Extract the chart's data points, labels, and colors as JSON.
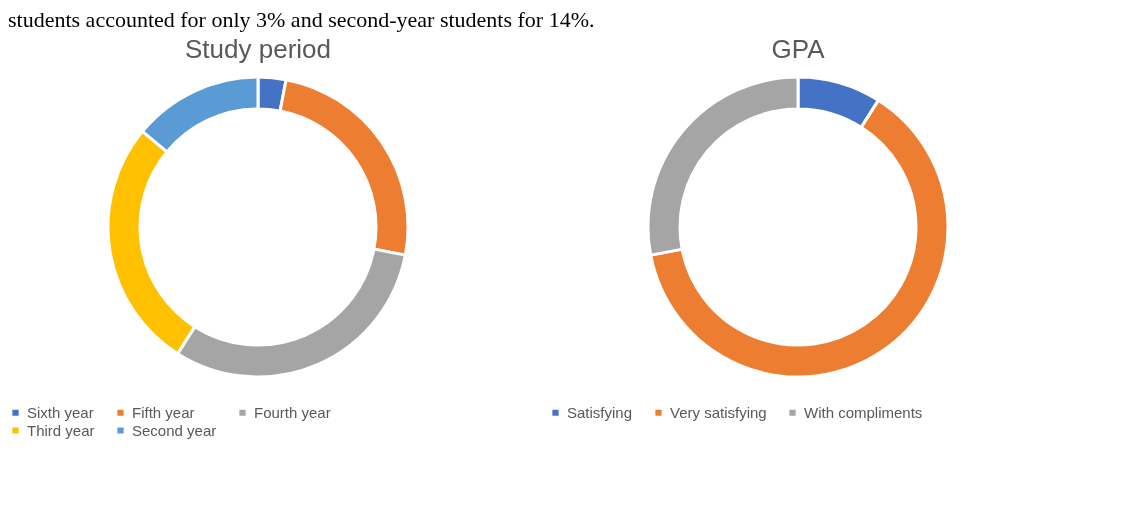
{
  "chart_data": [
    {
      "type": "donut",
      "title": "Study period",
      "annotations": [
        "students accounted for only 3% and second-year students for 14%."
      ],
      "categories": [
        "Sixth year",
        "Fifth year",
        "Fourth year",
        "Third year",
        "Second year"
      ],
      "values": [
        3,
        25,
        31,
        27,
        14
      ],
      "colors": [
        "#4472c4",
        "#ed7d31",
        "#a5a5a5",
        "#ffc000",
        "#5b9bd5"
      ],
      "legend": "bottom"
    },
    {
      "type": "donut",
      "title": "GPA",
      "categories": [
        "Satisfying",
        "Very satisfying",
        "With compliments"
      ],
      "values": [
        9,
        63,
        28
      ],
      "colors": [
        "#4472c4",
        "#ed7d31",
        "#a5a5a5"
      ],
      "legend": "bottom"
    }
  ]
}
